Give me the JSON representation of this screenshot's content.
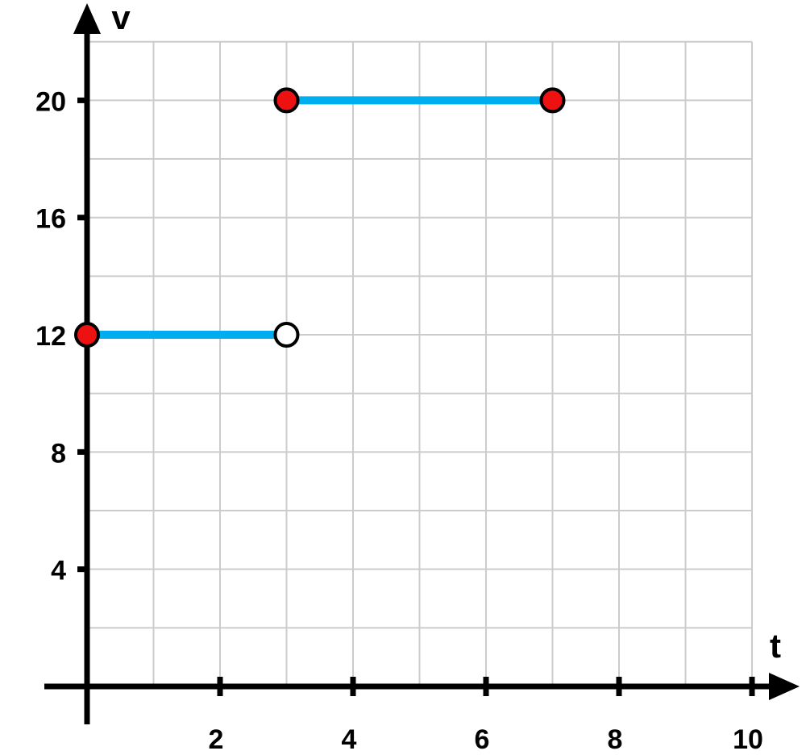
{
  "colors": {
    "grid": "#cccccc",
    "axis": "#000000",
    "segment": "#00aeef",
    "closed_point": "#ee1111",
    "open_point": "#ffffff",
    "point_outline": "#000000"
  },
  "chart_data": {
    "type": "line",
    "title": "",
    "xlabel": "t",
    "ylabel": "v",
    "xlim": [
      0,
      10
    ],
    "ylim": [
      0,
      22
    ],
    "grid": true,
    "x_grid_step": 1,
    "y_grid_step": 2,
    "x_ticks": [
      2,
      4,
      6,
      8,
      10
    ],
    "y_ticks": [
      4,
      8,
      12,
      16,
      20
    ],
    "x_tick_labels": [
      "2",
      "4",
      "6",
      "8",
      "10"
    ],
    "y_tick_labels": [
      "4",
      "8",
      "12",
      "16",
      "20"
    ],
    "segments": [
      {
        "x": [
          0,
          3
        ],
        "y": [
          12,
          12
        ],
        "start": "closed",
        "end": "open"
      },
      {
        "x": [
          3,
          7
        ],
        "y": [
          20,
          20
        ],
        "start": "closed",
        "end": "closed"
      }
    ]
  }
}
